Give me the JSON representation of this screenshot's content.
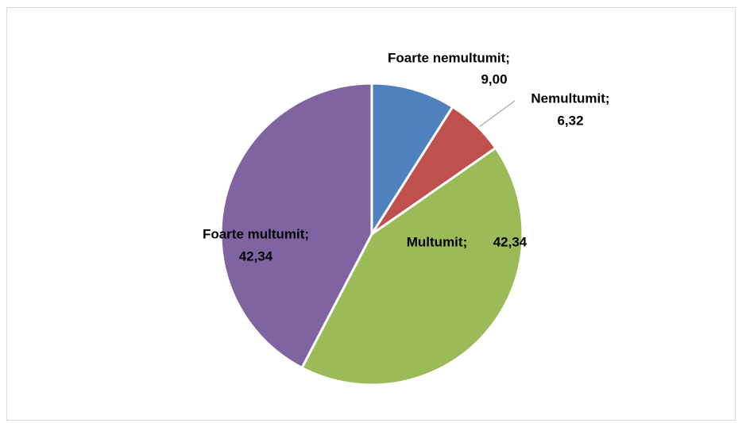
{
  "chart_data": {
    "type": "pie",
    "categories": [
      "Foarte nemultumit;",
      "Nemultumit;",
      "Multumit;",
      "Foarte multumit;"
    ],
    "values": [
      9.0,
      6.32,
      42.34,
      42.34
    ],
    "value_labels": [
      "9,00",
      "6,32",
      "42,34",
      "42,34"
    ],
    "colors": [
      "#4f81bd",
      "#c0504d",
      "#9bbb59",
      "#8064a2"
    ]
  }
}
